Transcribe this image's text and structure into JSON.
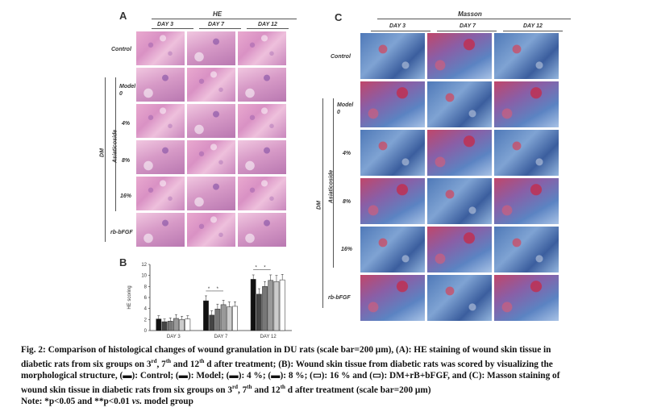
{
  "panel_a": {
    "letter": "A",
    "stain": "HE",
    "columns": [
      "DAY 3",
      "DAY 7",
      "DAY 12"
    ],
    "rows": [
      "Control",
      "Model\n0",
      "4%",
      "8%",
      "16%",
      "rb-bFGF"
    ],
    "group_dm": "DM",
    "group_asiaticoside": "Asiaticoside"
  },
  "panel_c": {
    "letter": "C",
    "stain": "Masson",
    "columns": [
      "DAY 3",
      "DAY 7",
      "DAY 12"
    ],
    "rows": [
      "Control",
      "Model\n0",
      "4%",
      "8%",
      "16%",
      "rb-bFGF"
    ],
    "group_dm": "DM",
    "group_asiaticoside": "Asiaticoside"
  },
  "panel_b": {
    "letter": "B",
    "star": "*"
  },
  "chart_data": {
    "type": "bar",
    "categories": [
      "DAY 3",
      "DAY 7",
      "DAY 12"
    ],
    "ylabel": "HE scoring",
    "ylim": [
      0,
      12
    ],
    "yticks": [
      0,
      2,
      4,
      6,
      8,
      10,
      12
    ],
    "series_colors": [
      "#111111",
      "#444444",
      "#777777",
      "#999999",
      "#cccccc",
      "#ffffff"
    ],
    "series": [
      {
        "values": [
          2.1,
          5.4,
          9.3
        ],
        "errors": [
          0.6,
          0.9,
          0.8
        ]
      },
      {
        "values": [
          1.6,
          2.8,
          6.6
        ],
        "errors": [
          0.5,
          0.8,
          1.0
        ]
      },
      {
        "values": [
          1.7,
          3.9,
          8.0
        ],
        "errors": [
          0.6,
          0.9,
          0.9
        ]
      },
      {
        "values": [
          2.2,
          4.7,
          9.1
        ],
        "errors": [
          0.7,
          0.8,
          1.0
        ]
      },
      {
        "values": [
          2.0,
          4.3,
          8.9
        ],
        "errors": [
          0.6,
          0.9,
          1.1
        ]
      },
      {
        "values": [
          2.1,
          4.4,
          9.2
        ],
        "errors": [
          0.6,
          0.8,
          1.0
        ]
      }
    ]
  },
  "caption": {
    "line1": "Fig. 2: Comparison of histological changes of wound granulation in DU rats (scale bar=200 μm), (A): HE staining of wound skin tissue in",
    "line2_a": "diabetic rats from six groups on 3",
    "line2_sup1": "rd",
    "line2_b": ", 7",
    "line2_sup2": "th",
    "line2_c": " and 12",
    "line2_sup3": "th",
    "line2_d": " d after treatment; (B): Wound skin tissue from diabetic rats was scored by visualizing the",
    "line3": "morphological structure, (▬): Control; (▬): Model; (▬): 4 %; (▬): 8 %; (▭): 16 % and (▭): DM+rB+bFGF, and (C): Masson staining of",
    "line4_a": "wound skin tissue in diabetic rats from six groups on 3",
    "line4_sup1": "rd",
    "line4_b": ", 7",
    "line4_sup2": "th",
    "line4_c": " and 12",
    "line4_sup3": "th",
    "line4_d": " d after treatment (scale bar=200 μm)",
    "line5_a": "Note: *p<0.05 and **p<0.01 ",
    "line5_vs": "vs.",
    "line5_b": " model group"
  }
}
